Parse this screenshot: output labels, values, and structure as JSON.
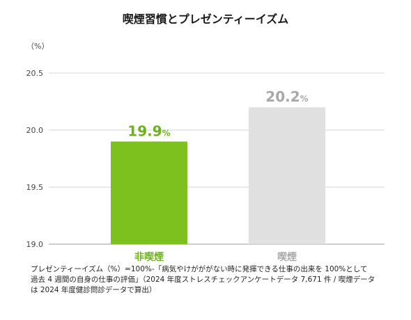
{
  "chart_data": {
    "type": "bar",
    "title": "喫煙習慣とプレゼンティーイズム",
    "unit_label": "（%）",
    "categories": [
      "非喫煙",
      "喫煙"
    ],
    "values": [
      19.9,
      20.2
    ],
    "value_labels": [
      "19.9",
      "20.2"
    ],
    "value_suffix": "%",
    "colors": [
      "#7dc11f",
      "#e0e0e0"
    ],
    "label_colors": [
      "#6cb31a",
      "#a8a8a8"
    ],
    "ylim": [
      19.0,
      20.5
    ],
    "yticks": [
      "19.0",
      "19.5",
      "20.0",
      "20.5"
    ],
    "grid": true
  },
  "note": [
    "プレゼンティーイズム（%）=100%-「病気やけがががない時に発揮できる仕事の出来を 100%として",
    "過去 4 週間の自身の仕事の評価」（2024 年度ストレスチェックアンケートデータ 7,671 件 / 喫煙データ",
    "は 2024 年度健診問診データで算出）"
  ]
}
